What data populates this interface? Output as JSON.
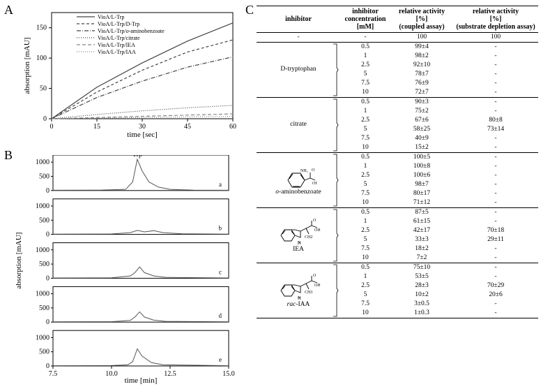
{
  "panelA": {
    "label": "A",
    "type": "line",
    "x_title": "time [sec]",
    "y_title": "absorption [mAU]",
    "xlim": [
      0,
      60
    ],
    "xticks": [
      0,
      15,
      30,
      45,
      60
    ],
    "ylim": [
      0,
      175
    ],
    "yticks": [
      0,
      50,
      100,
      150
    ],
    "line_color": "#555555",
    "background_color": "#ffffff",
    "series": [
      {
        "name": "VioA/L-Trp",
        "dash": "none",
        "points": [
          [
            0,
            0
          ],
          [
            15,
            52
          ],
          [
            30,
            92
          ],
          [
            45,
            128
          ],
          [
            60,
            158
          ]
        ]
      },
      {
        "name": "VioA/L-Trp/D-Trp",
        "dash": "4,3",
        "points": [
          [
            0,
            0
          ],
          [
            15,
            44
          ],
          [
            30,
            80
          ],
          [
            45,
            110
          ],
          [
            60,
            130
          ]
        ]
      },
      {
        "name": "VioA/L-Trp/o-aminobenzoate",
        "dash": "6,2,1,2",
        "sub": "o",
        "points": [
          [
            0,
            0
          ],
          [
            15,
            35
          ],
          [
            30,
            62
          ],
          [
            45,
            85
          ],
          [
            60,
            102
          ]
        ]
      },
      {
        "name": "VioA/L-Trp/citrate",
        "dash": "1,2",
        "points": [
          [
            0,
            0
          ],
          [
            15,
            7
          ],
          [
            30,
            13
          ],
          [
            45,
            18
          ],
          [
            60,
            22
          ]
        ]
      },
      {
        "name": "VioA/L-Trp/IEA",
        "dash": "5,3",
        "gray": true,
        "points": [
          [
            0,
            0
          ],
          [
            15,
            2
          ],
          [
            30,
            4
          ],
          [
            45,
            6
          ],
          [
            60,
            8
          ]
        ]
      },
      {
        "name": "VioA/L-Trp/IAA",
        "dash": "1,2",
        "gray": true,
        "points": [
          [
            0,
            0
          ],
          [
            15,
            1
          ],
          [
            30,
            2
          ],
          [
            45,
            3
          ],
          [
            60,
            4
          ]
        ]
      }
    ]
  },
  "panelB": {
    "label": "B",
    "type": "line-stack",
    "x_title": "time [min]",
    "y_title": "absorption [mAU]",
    "xlim": [
      7.5,
      15
    ],
    "xticks": [
      7.5,
      10.0,
      12.5,
      15.0
    ],
    "peak_label": "Trp",
    "line_color": "#555555",
    "subplots": [
      {
        "label": "a",
        "ylim": [
          0,
          1250
        ],
        "yticks": [
          0,
          500,
          1000
        ],
        "points": [
          [
            7.5,
            10
          ],
          [
            9.5,
            15
          ],
          [
            10.6,
            40
          ],
          [
            10.9,
            300
          ],
          [
            11.1,
            1100
          ],
          [
            11.3,
            700
          ],
          [
            11.6,
            300
          ],
          [
            12.0,
            120
          ],
          [
            12.5,
            40
          ],
          [
            13.5,
            15
          ],
          [
            15,
            10
          ]
        ]
      },
      {
        "label": "b",
        "ylim": [
          0,
          1250
        ],
        "yticks": [
          0,
          500,
          1000
        ],
        "points": [
          [
            7.5,
            10
          ],
          [
            10,
            15
          ],
          [
            10.8,
            60
          ],
          [
            11.1,
            140
          ],
          [
            11.4,
            90
          ],
          [
            11.8,
            130
          ],
          [
            12.2,
            60
          ],
          [
            13,
            20
          ],
          [
            15,
            10
          ]
        ]
      },
      {
        "label": "c",
        "ylim": [
          0,
          1250
        ],
        "yticks": [
          0,
          500,
          1000
        ],
        "points": [
          [
            7.5,
            10
          ],
          [
            10,
            15
          ],
          [
            10.8,
            80
          ],
          [
            11.0,
            200
          ],
          [
            11.2,
            400
          ],
          [
            11.4,
            200
          ],
          [
            11.8,
            80
          ],
          [
            12.3,
            30
          ],
          [
            15,
            10
          ]
        ]
      },
      {
        "label": "d",
        "ylim": [
          0,
          1250
        ],
        "yticks": [
          0,
          500,
          1000
        ],
        "points": [
          [
            7.5,
            10
          ],
          [
            10,
            15
          ],
          [
            10.8,
            60
          ],
          [
            11.0,
            180
          ],
          [
            11.2,
            360
          ],
          [
            11.4,
            180
          ],
          [
            11.8,
            70
          ],
          [
            12.3,
            25
          ],
          [
            15,
            10
          ]
        ]
      },
      {
        "label": "e",
        "ylim": [
          0,
          1250
        ],
        "yticks": [
          0,
          500,
          1000
        ],
        "points": [
          [
            7.5,
            10
          ],
          [
            10,
            15
          ],
          [
            10.7,
            40
          ],
          [
            10.9,
            150
          ],
          [
            11.1,
            600
          ],
          [
            11.3,
            350
          ],
          [
            11.7,
            120
          ],
          [
            12.2,
            40
          ],
          [
            15,
            10
          ]
        ]
      }
    ]
  },
  "panelC": {
    "label": "C",
    "type": "table",
    "columns": [
      "inhibitor",
      "inhibitor concentration [mM]",
      "relative activity [%] (coupled assay)",
      "relative activity [%] (substrate depletion assay)"
    ],
    "col_headers": {
      "c1": "inhibitor",
      "c2a": "inhibitor",
      "c2b": "concentration",
      "c2c": "[mM]",
      "c3a": "relative activity",
      "c3b": "[%]",
      "c3c": "(coupled assay)",
      "c4a": "relative activity",
      "c4b": "[%]",
      "c4c": "(substrate depletion assay)"
    },
    "baseline": {
      "inhibitor": "-",
      "conc": "-",
      "coupled": "100",
      "depl": "100"
    },
    "groups": [
      {
        "name": "D-tryptophan",
        "mol": null,
        "rows": [
          {
            "conc": "0.5",
            "coupled": "99±4",
            "depl": "-"
          },
          {
            "conc": "1",
            "coupled": "98±2",
            "depl": "-"
          },
          {
            "conc": "2.5",
            "coupled": "92±10",
            "depl": "-"
          },
          {
            "conc": "5",
            "coupled": "78±7",
            "depl": "-"
          },
          {
            "conc": "7.5",
            "coupled": "76±9",
            "depl": "-"
          },
          {
            "conc": "10",
            "coupled": "72±7",
            "depl": "-"
          }
        ]
      },
      {
        "name": "citrate",
        "mol": null,
        "rows": [
          {
            "conc": "0.5",
            "coupled": "90±3",
            "depl": "-"
          },
          {
            "conc": "1",
            "coupled": "75±2",
            "depl": "-"
          },
          {
            "conc": "2.5",
            "coupled": "67±6",
            "depl": "80±8"
          },
          {
            "conc": "5",
            "coupled": "58±25",
            "depl": "73±14"
          },
          {
            "conc": "7.5",
            "coupled": "40±9",
            "depl": "-"
          },
          {
            "conc": "10",
            "coupled": "15±2",
            "depl": "-"
          }
        ]
      },
      {
        "name": "o-aminobenzoate",
        "italic_prefix": "o",
        "suffix": "-aminobenzoate",
        "mol": "aminobenzoate",
        "rows": [
          {
            "conc": "0.5",
            "coupled": "100±5",
            "depl": "-"
          },
          {
            "conc": "1",
            "coupled": "100±8",
            "depl": "-"
          },
          {
            "conc": "2.5",
            "coupled": "100±6",
            "depl": "-"
          },
          {
            "conc": "5",
            "coupled": "98±7",
            "depl": "-"
          },
          {
            "conc": "7.5",
            "coupled": "80±17",
            "depl": "-"
          },
          {
            "conc": "10",
            "coupled": "71±12",
            "depl": "-"
          }
        ]
      },
      {
        "name": "IEA",
        "mol": "iea",
        "rows": [
          {
            "conc": "0.5",
            "coupled": "87±5",
            "depl": "-"
          },
          {
            "conc": "1",
            "coupled": "61±15",
            "depl": "-"
          },
          {
            "conc": "2.5",
            "coupled": "42±17",
            "depl": "70±18"
          },
          {
            "conc": "5",
            "coupled": "33±3",
            "depl": "29±11"
          },
          {
            "conc": "7.5",
            "coupled": "18±2",
            "depl": "-"
          },
          {
            "conc": "10",
            "coupled": "7±2",
            "depl": "-"
          }
        ]
      },
      {
        "name": "rac-IAA",
        "italic_prefix": "rac",
        "suffix": "-IAA",
        "mol": "iaa",
        "rows": [
          {
            "conc": "0.5",
            "coupled": "75±10",
            "depl": "-"
          },
          {
            "conc": "1",
            "coupled": "53±5",
            "depl": "-"
          },
          {
            "conc": "2.5",
            "coupled": "28±3",
            "depl": "70±29"
          },
          {
            "conc": "5",
            "coupled": "10±2",
            "depl": "20±6"
          },
          {
            "conc": "7.5",
            "coupled": "3±0.5",
            "depl": "-"
          },
          {
            "conc": "10",
            "coupled": "1±0.3",
            "depl": "-"
          }
        ]
      }
    ]
  }
}
